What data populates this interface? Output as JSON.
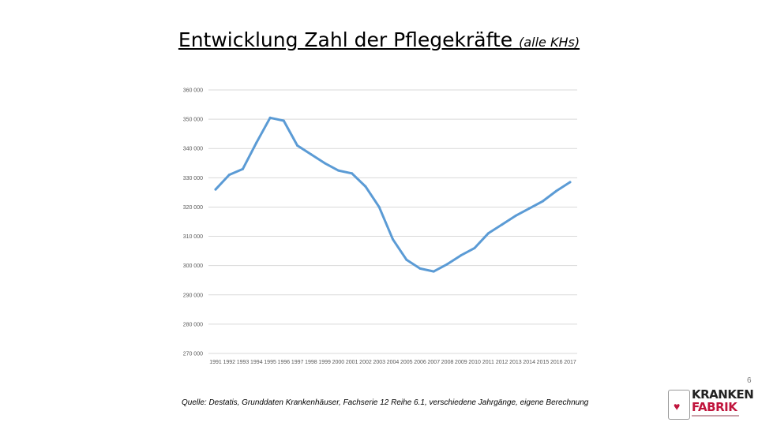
{
  "slide": {
    "title_main": "Entwicklung Zahl der Pflegekräfte",
    "title_sub": "(alle KHs)",
    "page_number": "6",
    "source": "Quelle: Destatis, Grunddaten Krankenhäuser, Fachserie 12 Reihe 6.1, verschiedene Jahrgänge, eigene Berechnung",
    "logo": {
      "line1": "KRANKEN",
      "line2": "FABRIK"
    }
  },
  "colors": {
    "series": "#5b9bd5",
    "grid": "#d9d9d9",
    "logo_accent": "#c0143c"
  },
  "chart_data": {
    "type": "line",
    "title": "",
    "xlabel": "",
    "ylabel": "",
    "ylim": [
      270000,
      360000
    ],
    "yticks": [
      {
        "value": 360000,
        "label": "360 000"
      },
      {
        "value": 350000,
        "label": "350 000"
      },
      {
        "value": 340000,
        "label": "340 000"
      },
      {
        "value": 330000,
        "label": "330 000"
      },
      {
        "value": 320000,
        "label": "320 000"
      },
      {
        "value": 310000,
        "label": "310 000"
      },
      {
        "value": 300000,
        "label": "300 000"
      },
      {
        "value": 290000,
        "label": "290 000"
      },
      {
        "value": 280000,
        "label": "280 000"
      },
      {
        "value": 270000,
        "label": "270 000"
      }
    ],
    "grid": true,
    "legend": "none",
    "categories": [
      "1991",
      "1992",
      "1993",
      "1994",
      "1995",
      "1996",
      "1997",
      "1998",
      "1999",
      "2000",
      "2001",
      "2002",
      "2003",
      "2004",
      "2005",
      "2006",
      "2007",
      "2008",
      "2009",
      "2010",
      "2011",
      "2012",
      "2013",
      "2014",
      "2015",
      "2016",
      "2017"
    ],
    "series": [
      {
        "values": [
          326000,
          331000,
          333000,
          342000,
          350500,
          349500,
          341000,
          338000,
          335000,
          332500,
          331500,
          327000,
          320000,
          309000,
          302000,
          299000,
          298000,
          300500,
          303500,
          306000,
          311000,
          314000,
          317000,
          319500,
          322000,
          325500,
          328500
        ]
      }
    ]
  }
}
